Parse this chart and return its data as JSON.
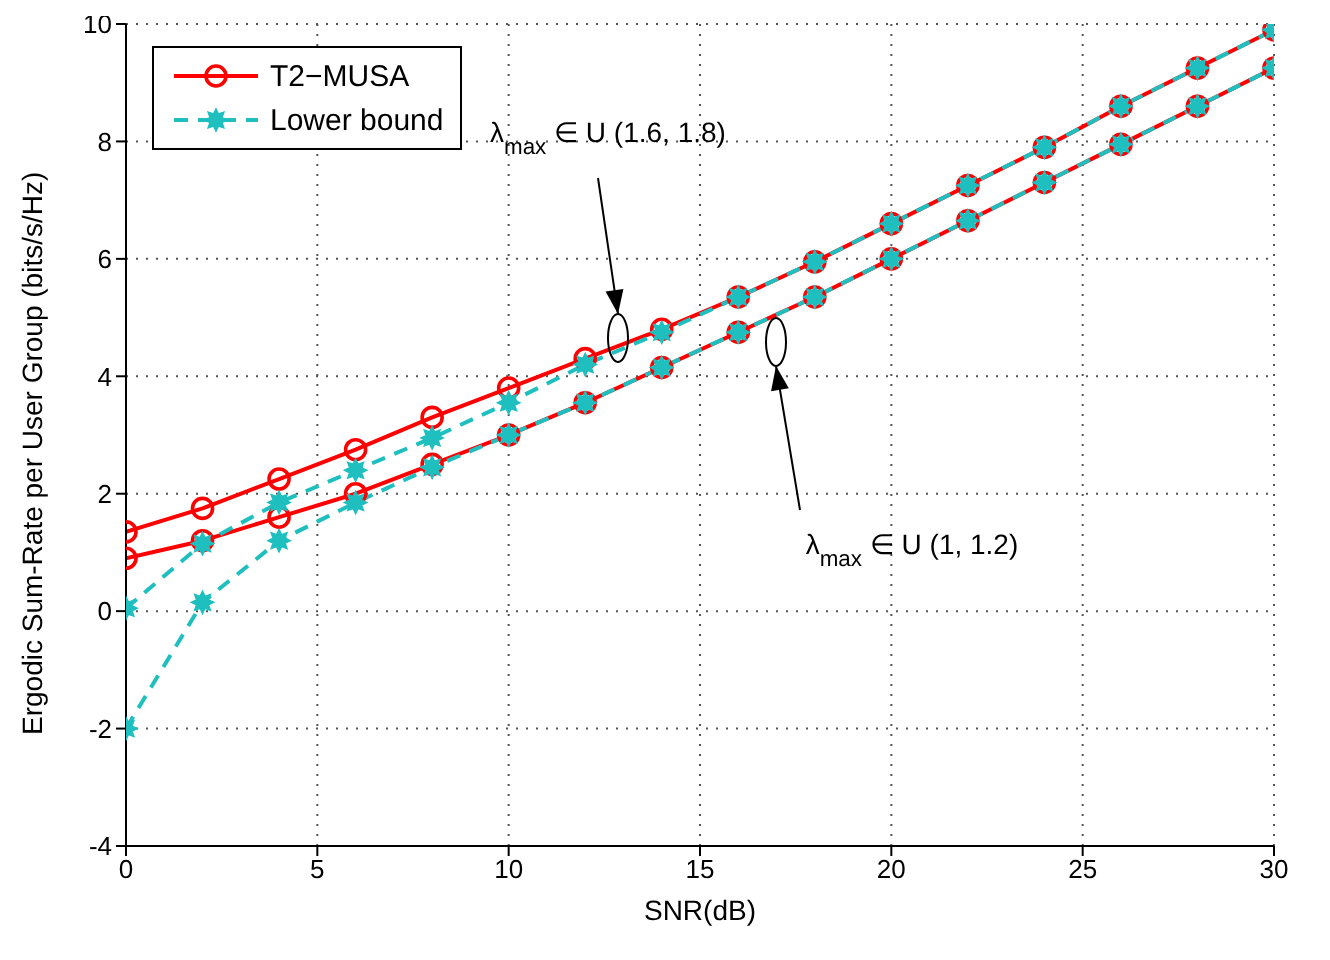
{
  "chart_data": {
    "type": "line",
    "xlabel": "SNR(dB)",
    "ylabel": "Ergodic Sum-Rate per User Group (bits/s/Hz)",
    "x": [
      0,
      2,
      4,
      6,
      8,
      10,
      12,
      14,
      16,
      18,
      20,
      22,
      24,
      26,
      28,
      30
    ],
    "series": [
      {
        "name": "T2−MUSA",
        "color": "#ff0000",
        "marker": "circle",
        "line_style": "solid",
        "values": [
          1.35,
          1.75,
          2.25,
          2.75,
          3.3,
          3.8,
          4.3,
          4.8,
          5.35,
          5.95,
          6.6,
          7.25,
          7.9,
          8.6,
          9.25,
          9.9
        ]
      },
      {
        "color": "#ff0000",
        "marker": "circle",
        "line_style": "solid",
        "values": [
          0.9,
          1.2,
          1.6,
          2.0,
          2.5,
          3.0,
          3.55,
          4.15,
          4.75,
          5.35,
          6.0,
          6.65,
          7.3,
          7.95,
          8.6,
          9.25
        ]
      },
      {
        "name": "Lower bound",
        "color": "#1fbfbf",
        "marker": "star",
        "line_style": "dashed",
        "values": [
          0.05,
          1.15,
          1.85,
          2.4,
          2.95,
          3.55,
          4.2,
          4.75,
          5.35,
          5.95,
          6.6,
          7.25,
          7.9,
          8.6,
          9.25,
          9.9
        ]
      },
      {
        "color": "#1fbfbf",
        "marker": "star",
        "line_style": "dashed",
        "values": [
          -2.0,
          0.15,
          1.2,
          1.85,
          2.45,
          3.0,
          3.55,
          4.15,
          4.75,
          5.35,
          6.0,
          6.65,
          7.3,
          7.95,
          8.6,
          9.25
        ]
      }
    ],
    "xlim": [
      0,
      30
    ],
    "xticks": [
      0,
      5,
      10,
      15,
      20,
      25,
      30
    ],
    "ylim": [
      -4,
      10
    ],
    "yticks": [
      -4,
      -2,
      0,
      2,
      4,
      6,
      8,
      10
    ],
    "grid": true,
    "legend": "top left",
    "annotations": [
      "λ$_{max}$ ∈ U (1.6, 1.8)",
      "λ$_{max}$ ∈ U (1, 1.2)"
    ]
  }
}
